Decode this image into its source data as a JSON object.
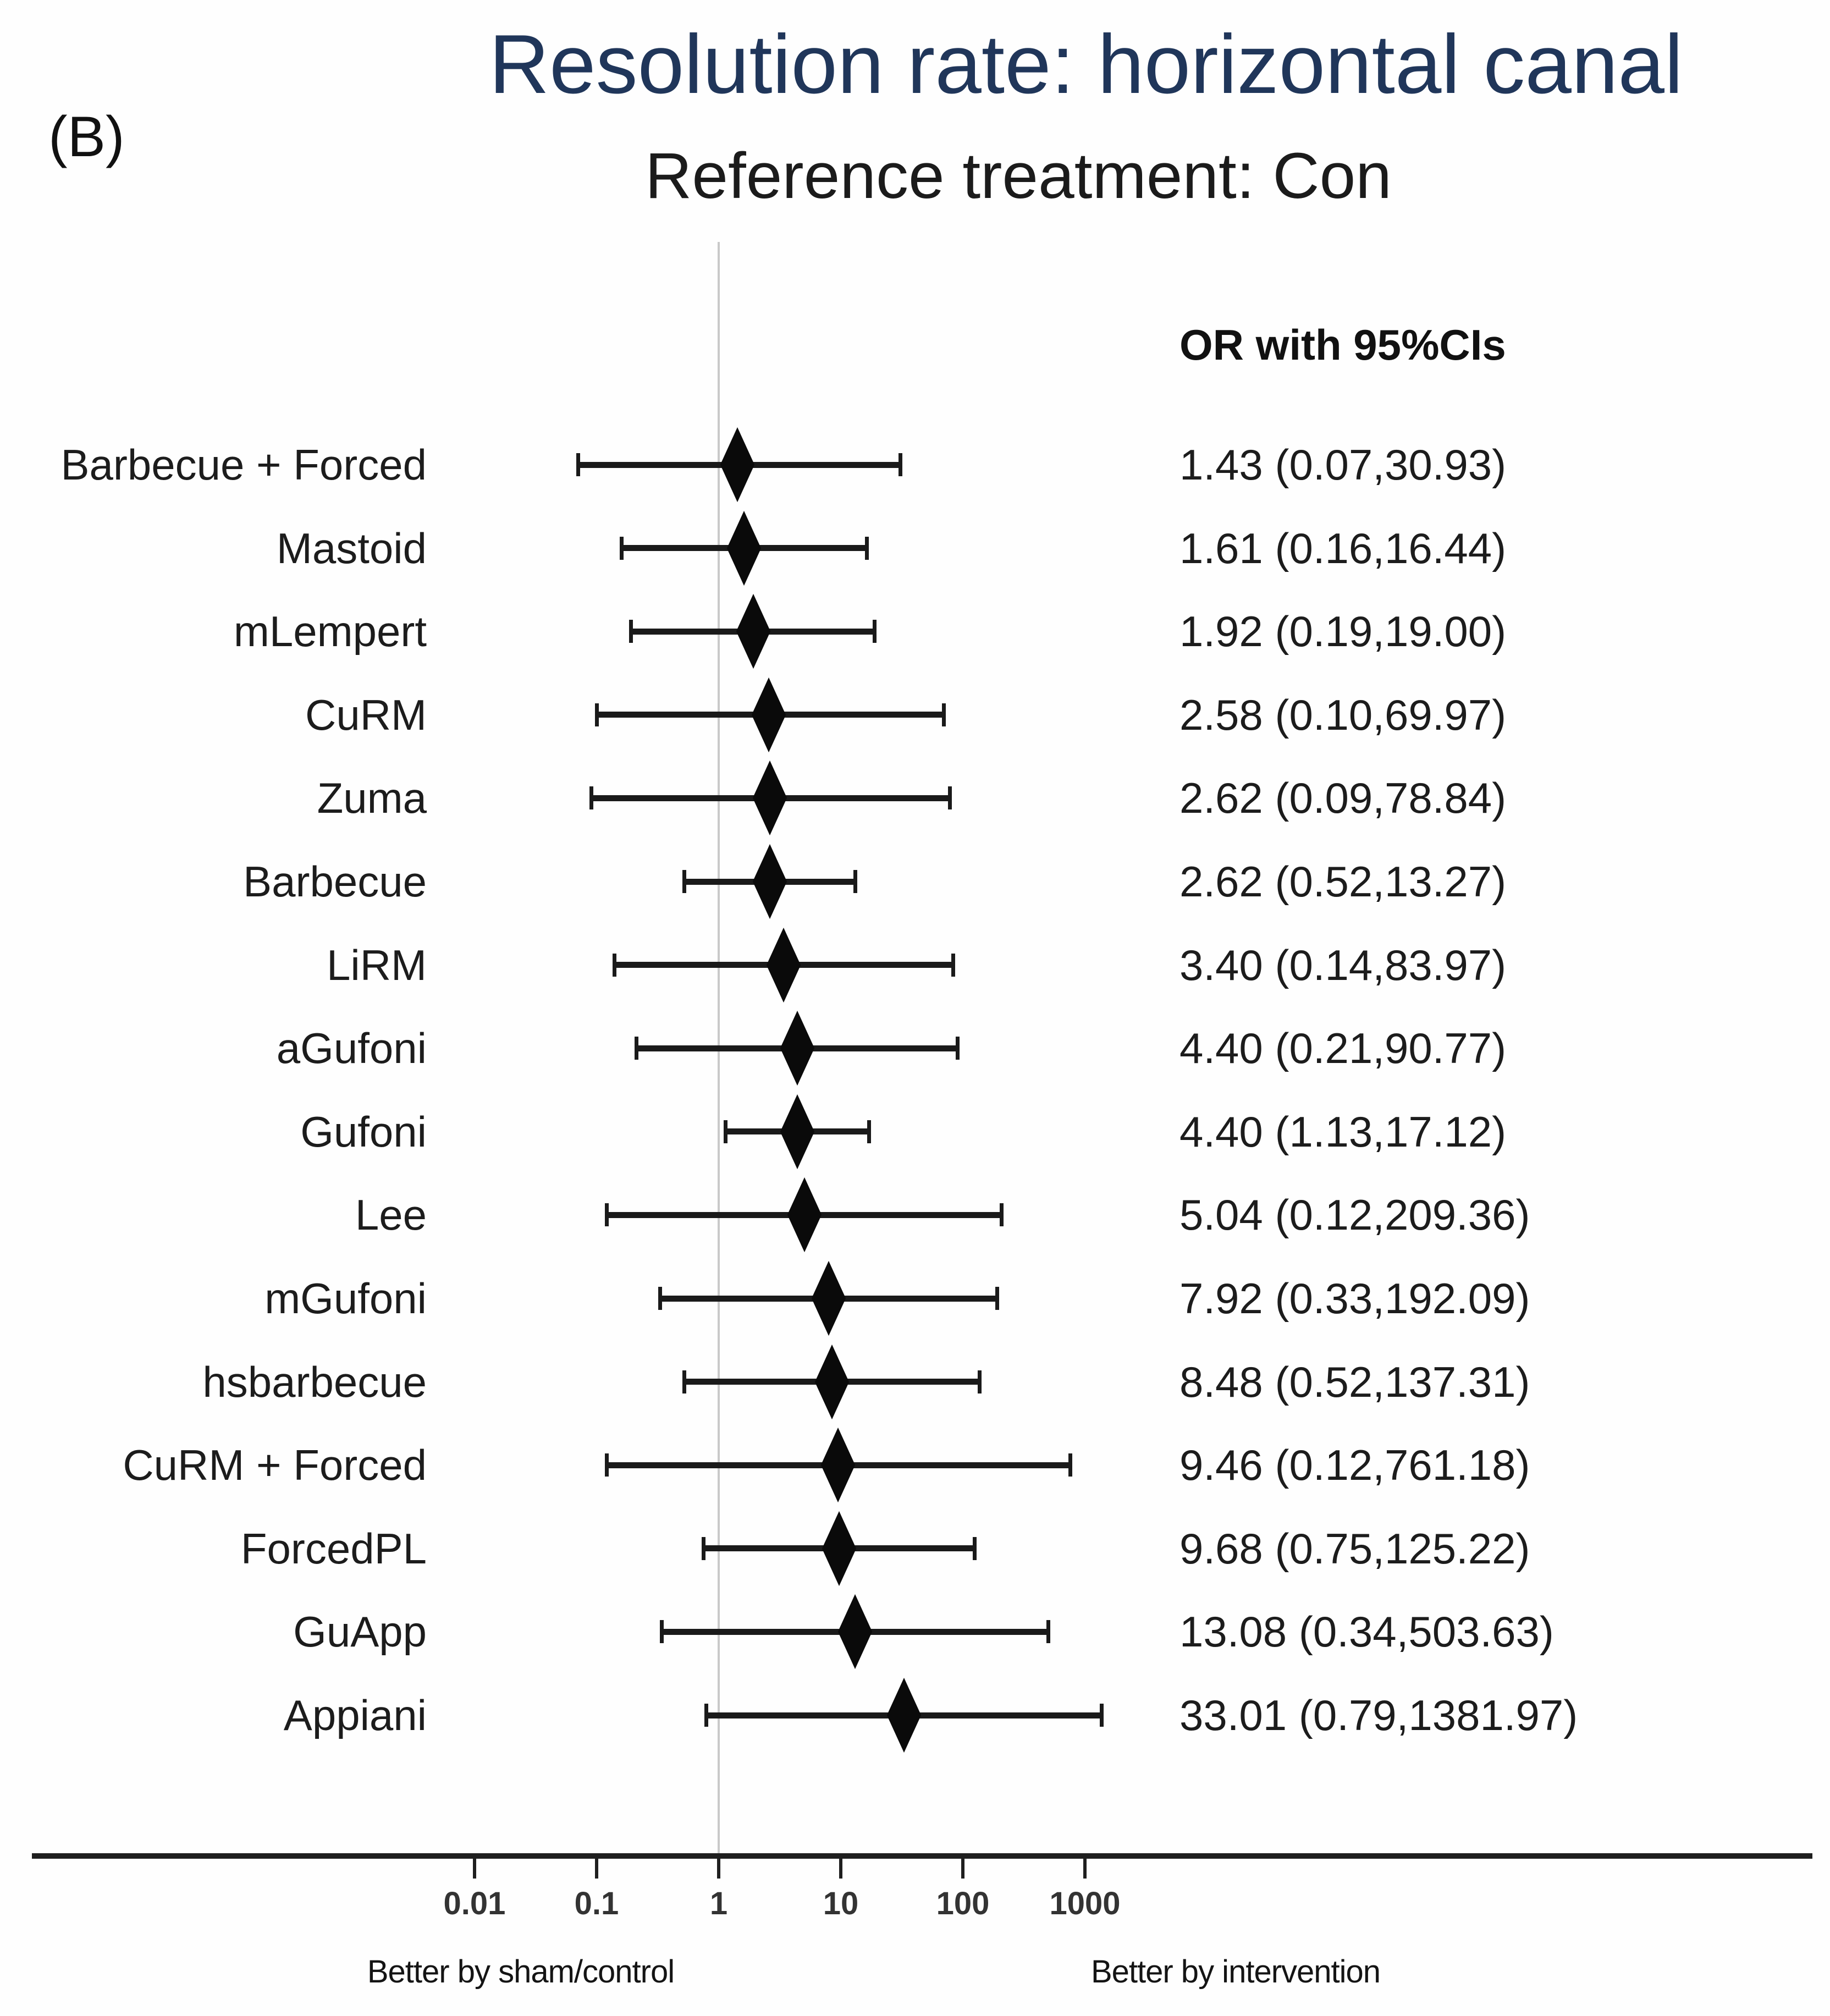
{
  "panel_label": "(B)",
  "title": "Resolution rate: horizontal canal",
  "subtitle": "Reference treatment: Con",
  "or_header": "OR with 95%CIs",
  "footer": {
    "left_label": "Better by sham/control",
    "right_label": "Better by intervention"
  },
  "colors": {
    "title": "#20365a",
    "subtitle": "#1b1b1b",
    "text": "#1c1c1c",
    "marker": "#0a0a0a",
    "error_bar": "#1a1a1a",
    "ref_line": "#c9c9c9",
    "axis": "#1f1f1f"
  },
  "chart_data": {
    "type": "scatter",
    "subtype": "forest-plot",
    "title": "Resolution rate: horizontal canal",
    "subtitle": "Reference treatment: Con",
    "column_header": "OR with 95%CIs",
    "x_scale": "log10",
    "x_range": [
      0.001,
      10000
    ],
    "x_ticks": [
      0.01,
      0.1,
      1,
      10,
      100,
      1000
    ],
    "x_tick_labels": [
      "0.01",
      "0.1",
      "1",
      "10",
      "100",
      "1000"
    ],
    "reference_line_x": 1,
    "marker": "diamond",
    "grid": false,
    "rows": [
      {
        "label": "Barbecue + Forced",
        "or": 1.43,
        "ci_low": 0.07,
        "ci_high": 30.93,
        "display": "1.43 (0.07,30.93)"
      },
      {
        "label": "Mastoid",
        "or": 1.61,
        "ci_low": 0.16,
        "ci_high": 16.44,
        "display": "1.61 (0.16,16.44)"
      },
      {
        "label": "mLempert",
        "or": 1.92,
        "ci_low": 0.19,
        "ci_high": 19.0,
        "display": "1.92 (0.19,19.00)"
      },
      {
        "label": "CuRM",
        "or": 2.58,
        "ci_low": 0.1,
        "ci_high": 69.97,
        "display": "2.58 (0.10,69.97)"
      },
      {
        "label": "Zuma",
        "or": 2.62,
        "ci_low": 0.09,
        "ci_high": 78.84,
        "display": "2.62 (0.09,78.84)"
      },
      {
        "label": "Barbecue",
        "or": 2.62,
        "ci_low": 0.52,
        "ci_high": 13.27,
        "display": "2.62 (0.52,13.27)"
      },
      {
        "label": "LiRM",
        "or": 3.4,
        "ci_low": 0.14,
        "ci_high": 83.97,
        "display": "3.40 (0.14,83.97)"
      },
      {
        "label": "aGufoni",
        "or": 4.4,
        "ci_low": 0.21,
        "ci_high": 90.77,
        "display": "4.40 (0.21,90.77)"
      },
      {
        "label": "Gufoni",
        "or": 4.4,
        "ci_low": 1.13,
        "ci_high": 17.12,
        "display": "4.40 (1.13,17.12)"
      },
      {
        "label": "Lee",
        "or": 5.04,
        "ci_low": 0.12,
        "ci_high": 209.36,
        "display": "5.04 (0.12,209.36)"
      },
      {
        "label": "mGufoni",
        "or": 7.92,
        "ci_low": 0.33,
        "ci_high": 192.09,
        "display": "7.92 (0.33,192.09)"
      },
      {
        "label": "hsbarbecue",
        "or": 8.48,
        "ci_low": 0.52,
        "ci_high": 137.31,
        "display": "8.48 (0.52,137.31)"
      },
      {
        "label": "CuRM + Forced",
        "or": 9.46,
        "ci_low": 0.12,
        "ci_high": 761.18,
        "display": "9.46 (0.12,761.18)"
      },
      {
        "label": "ForcedPL",
        "or": 9.68,
        "ci_low": 0.75,
        "ci_high": 125.22,
        "display": "9.68 (0.75,125.22)"
      },
      {
        "label": "GuApp",
        "or": 13.08,
        "ci_low": 0.34,
        "ci_high": 503.63,
        "display": "13.08 (0.34,503.63)"
      },
      {
        "label": "Appiani",
        "or": 33.01,
        "ci_low": 0.79,
        "ci_high": 1381.97,
        "display": "33.01 (0.79,1381.97)"
      }
    ],
    "xlabel_left": "Better by sham/control",
    "xlabel_right": "Better by intervention",
    "legend_position": "none"
  }
}
